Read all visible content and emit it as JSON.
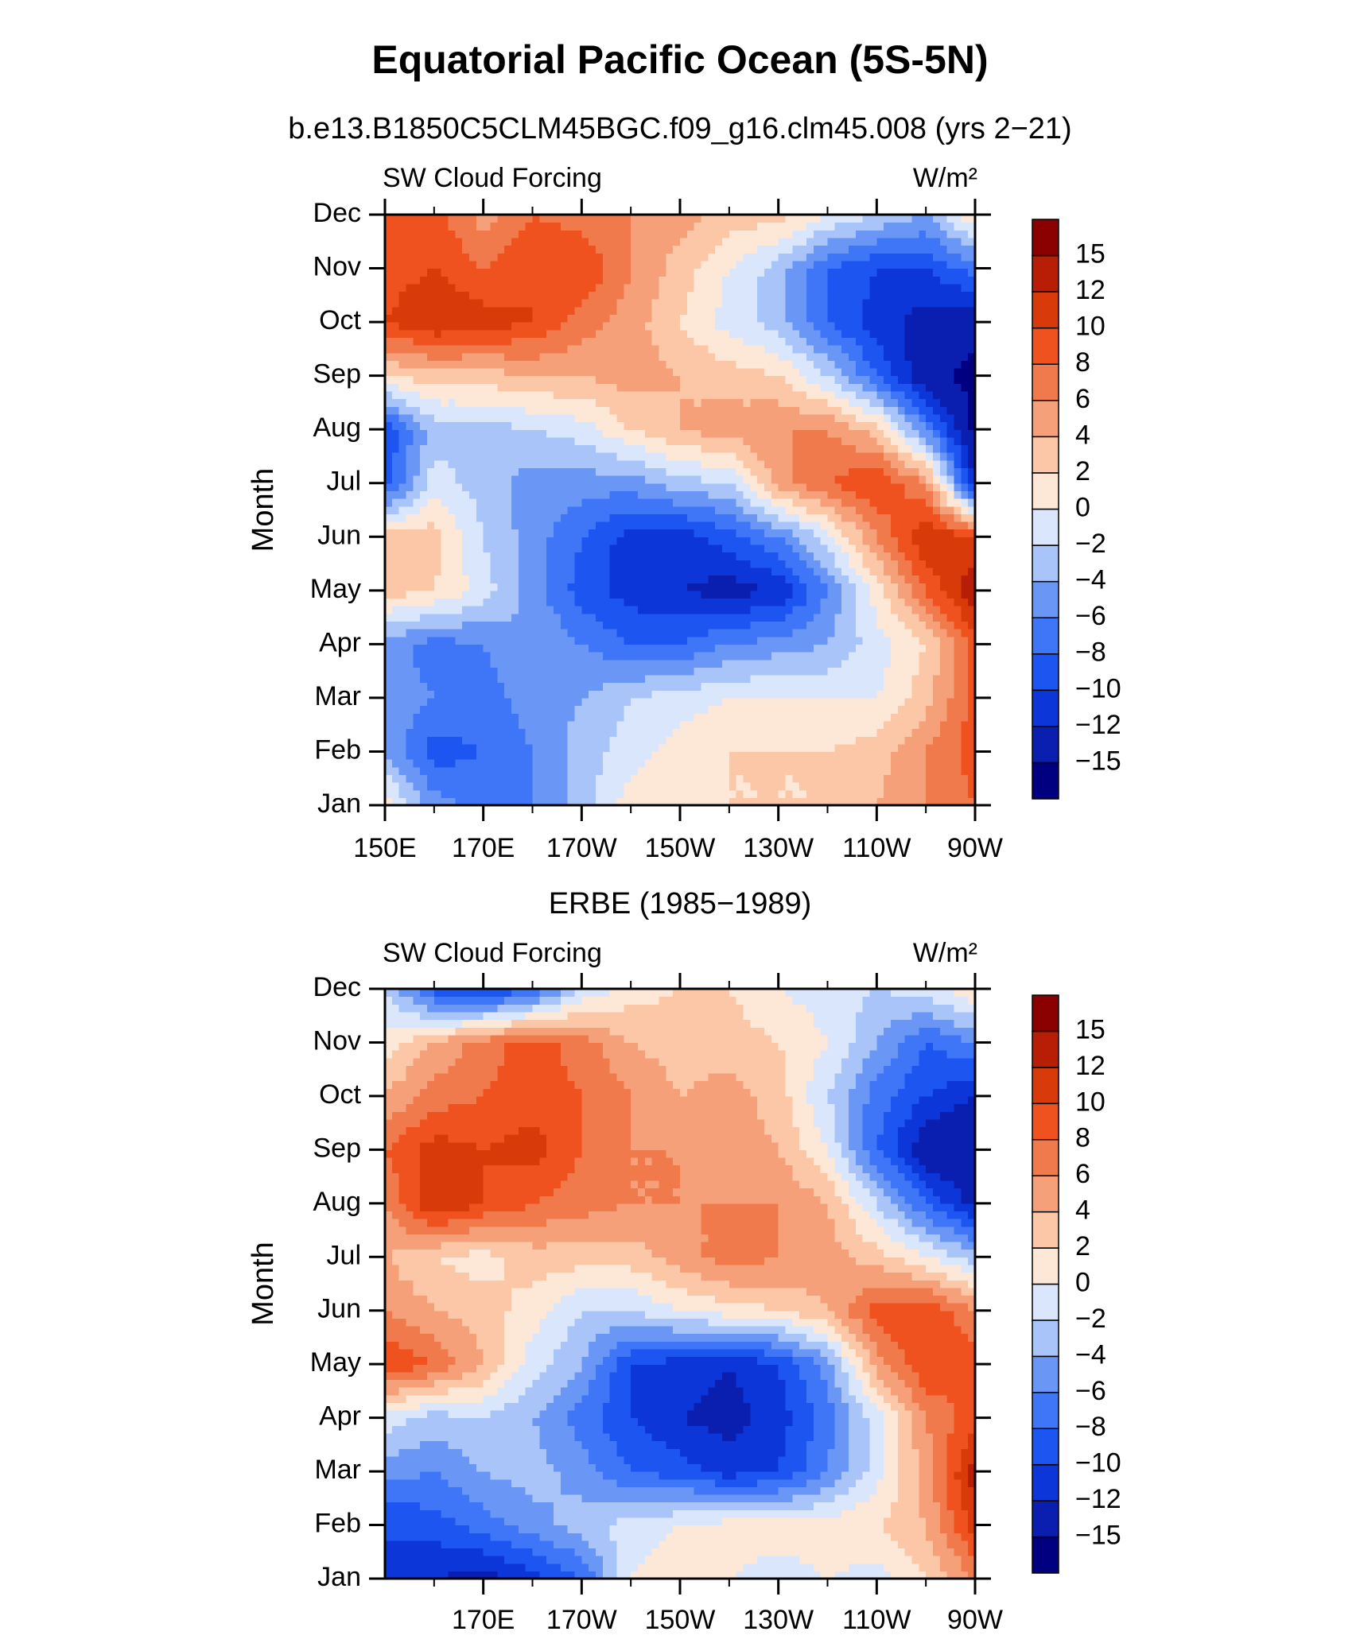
{
  "title": "Equatorial Pacific Ocean (5S-5N)",
  "chart_data": [
    {
      "type": "contour",
      "subtitle": "b.e13.B1850C5CLM45BGC.f09_g16.clm45.008 (yrs 2−21)",
      "left_label": "SW Cloud Forcing",
      "right_label": "W/m²",
      "ylabel": "Month",
      "x": [
        150,
        160,
        170,
        180,
        190,
        200,
        210,
        220,
        230,
        240,
        250,
        260,
        270
      ],
      "y": [
        "Jan",
        "Feb",
        "Mar",
        "Apr",
        "May",
        "Jun",
        "Jul",
        "Aug",
        "Sep",
        "Oct",
        "Nov",
        "Dec"
      ],
      "xlim": [
        150,
        270
      ],
      "xticks": [
        {
          "value": 150,
          "label": "150E"
        },
        {
          "value": 170,
          "label": "170E"
        },
        {
          "value": 190,
          "label": "170W"
        },
        {
          "value": 210,
          "label": "150W"
        },
        {
          "value": 230,
          "label": "130W"
        },
        {
          "value": 250,
          "label": "110W"
        },
        {
          "value": 270,
          "label": "90W"
        }
      ],
      "xminorticks": [
        160,
        180,
        200,
        220,
        240,
        260
      ],
      "values": [
        [
          1,
          -5,
          -7,
          -6,
          -3,
          1,
          2,
          2,
          2,
          2,
          4,
          6,
          8
        ],
        [
          -4,
          -9,
          -8,
          -6,
          -3,
          -1,
          1,
          2,
          2,
          2,
          3,
          6,
          9
        ],
        [
          -5,
          -6,
          -7,
          -5,
          -4,
          -2,
          -1,
          0,
          0,
          0,
          0,
          3,
          9
        ],
        [
          -5,
          -7,
          -6,
          -4,
          -6,
          -8,
          -8,
          -6,
          -5,
          -4,
          -1,
          2,
          9
        ],
        [
          3,
          2,
          -1,
          -5,
          -9,
          -11,
          -12,
          -13,
          -12,
          -6,
          1,
          8,
          14
        ],
        [
          3,
          3,
          -2,
          -5,
          -8,
          -11,
          -11,
          -9,
          -6,
          -1,
          6,
          12,
          10
        ],
        [
          -9,
          -1,
          -3,
          -5,
          -5,
          -5,
          -3,
          -2,
          5,
          8,
          10,
          6,
          -12
        ],
        [
          -10,
          -3,
          -3,
          -2,
          -1,
          2,
          4,
          5,
          6,
          6,
          3,
          -6,
          -16
        ],
        [
          2,
          3,
          3,
          4,
          4,
          5,
          4,
          3,
          2,
          -2,
          -8,
          -14,
          -16
        ],
        [
          10,
          12,
          11,
          10,
          7,
          5,
          2,
          -1,
          -3,
          -8,
          -11,
          -13,
          -14
        ],
        [
          9,
          10,
          8,
          10,
          10,
          6,
          3,
          0,
          -3,
          -8,
          -10,
          -10,
          -7
        ],
        [
          8,
          9,
          5,
          8,
          7,
          6,
          5,
          3,
          3,
          0,
          -2,
          -4,
          2
        ]
      ],
      "levels": [
        {
          "value": -15,
          "label": "−15"
        },
        {
          "value": -12,
          "label": "−12"
        },
        {
          "value": -10,
          "label": "−10"
        },
        {
          "value": -8,
          "label": "−8"
        },
        {
          "value": -6,
          "label": "−6"
        },
        {
          "value": -4,
          "label": "−4"
        },
        {
          "value": -2,
          "label": "−2"
        },
        0,
        2,
        4,
        6,
        8,
        10,
        12,
        15
      ],
      "colors": [
        "#000080",
        "#0a1fb0",
        "#0c36d8",
        "#1d55f0",
        "#3f75f7",
        "#6a96f6",
        "#a8c4f8",
        "#d9e6fb",
        "#fde8d8",
        "#fbc7a7",
        "#f6a079",
        "#f07a4c",
        "#f0521f",
        "#d93a0a",
        "#b81d05",
        "#8b0000"
      ]
    },
    {
      "type": "contour",
      "subtitle": "ERBE (1985−1989)",
      "left_label": "SW Cloud Forcing",
      "right_label": "W/m²",
      "ylabel": "Month",
      "x": [
        150,
        160,
        170,
        180,
        190,
        200,
        210,
        220,
        230,
        240,
        250,
        260,
        270
      ],
      "y": [
        "Jan",
        "Feb",
        "Mar",
        "Apr",
        "May",
        "Jun",
        "Jul",
        "Aug",
        "Sep",
        "Oct",
        "Nov",
        "Dec"
      ],
      "xlim": [
        150,
        270
      ],
      "xticks": [
        {
          "value": 170,
          "label": "170E"
        },
        {
          "value": 190,
          "label": "170W"
        },
        {
          "value": 210,
          "label": "150W"
        },
        {
          "value": 230,
          "label": "130W"
        },
        {
          "value": 250,
          "label": "110W"
        },
        {
          "value": 270,
          "label": "90W"
        }
      ],
      "xminorticks": [
        160,
        180,
        200,
        220,
        240,
        260
      ],
      "values": [
        [
          -10,
          -12,
          -13,
          -11,
          -8,
          0,
          1,
          0,
          -1,
          0,
          -1,
          2,
          6
        ],
        [
          -10,
          -9,
          -7,
          -5,
          -3,
          -1,
          0,
          1,
          1,
          1,
          2,
          4,
          11
        ],
        [
          -5,
          -6,
          -4,
          -3,
          -5,
          -8,
          -9,
          -11,
          -10,
          -6,
          -1,
          5,
          13
        ],
        [
          -1,
          -3,
          -2,
          -4,
          -7,
          -10,
          -12,
          -13,
          -11,
          -7,
          -1,
          6,
          9
        ],
        [
          10,
          8,
          4,
          -1,
          -4,
          -10,
          -11,
          -12,
          -10,
          -5,
          5,
          10,
          9
        ],
        [
          6,
          4,
          3,
          1,
          -2,
          -2,
          0,
          1,
          2,
          4,
          9,
          10,
          6
        ],
        [
          4,
          2,
          1,
          3,
          3,
          3,
          5,
          7,
          6,
          5,
          3,
          0,
          -3
        ],
        [
          6,
          12,
          10,
          8,
          7,
          6,
          6,
          6,
          6,
          4,
          -2,
          -8,
          -13
        ],
        [
          8,
          11,
          10,
          11,
          8,
          6,
          6,
          5,
          4,
          0,
          -8,
          -14,
          -15
        ],
        [
          4,
          7,
          8,
          9,
          8,
          6,
          4,
          5,
          3,
          -2,
          -7,
          -10,
          -12
        ],
        [
          1,
          4,
          7,
          9,
          7,
          4,
          3,
          3,
          2,
          0,
          -4,
          -8,
          -6
        ],
        [
          -2,
          -9,
          -11,
          -8,
          -2,
          1,
          2,
          2,
          0,
          -1,
          -2,
          -1,
          2
        ]
      ],
      "levels": [
        {
          "value": -15,
          "label": "−15"
        },
        {
          "value": -12,
          "label": "−12"
        },
        {
          "value": -10,
          "label": "−10"
        },
        {
          "value": -8,
          "label": "−8"
        },
        {
          "value": -6,
          "label": "−6"
        },
        {
          "value": -4,
          "label": "−4"
        },
        {
          "value": -2,
          "label": "−2"
        },
        0,
        2,
        4,
        6,
        8,
        10,
        12,
        15
      ],
      "colors": [
        "#000080",
        "#0a1fb0",
        "#0c36d8",
        "#1d55f0",
        "#3f75f7",
        "#6a96f6",
        "#a8c4f8",
        "#d9e6fb",
        "#fde8d8",
        "#fbc7a7",
        "#f6a079",
        "#f07a4c",
        "#f0521f",
        "#d93a0a",
        "#b81d05",
        "#8b0000"
      ]
    }
  ]
}
